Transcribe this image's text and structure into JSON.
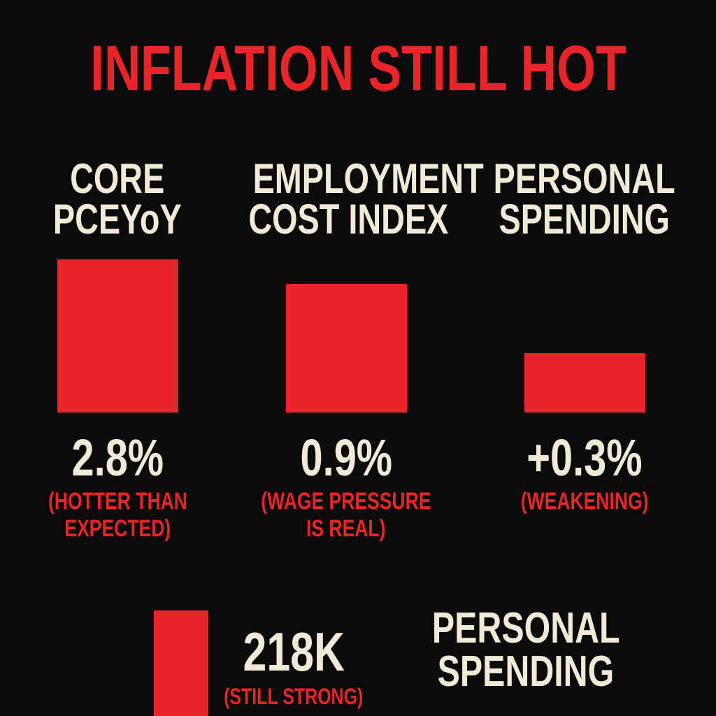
{
  "title": "INFLATION STILL HOT",
  "panels": [
    {
      "heading": [
        "CORE",
        "PCEYoY"
      ],
      "value": "2.8%",
      "note": [
        "(HOTTER THAN",
        "EXPECTED)"
      ]
    },
    {
      "heading": [
        "EMPLOYMENT",
        "COST INDEX"
      ],
      "value": "0.9%",
      "note": [
        "(WAGE PRESSURE",
        "IS REAL)"
      ]
    },
    {
      "heading": [
        "PERSONAL",
        "SPENDING"
      ],
      "value": "+0.3%",
      "note": [
        "(WEAKENING)"
      ]
    }
  ],
  "jobs": {
    "value": "218K",
    "note": "(STILL STRONG)"
  },
  "second_spending": {
    "heading": [
      "PERSONAL",
      "SPENDING"
    ]
  }
}
